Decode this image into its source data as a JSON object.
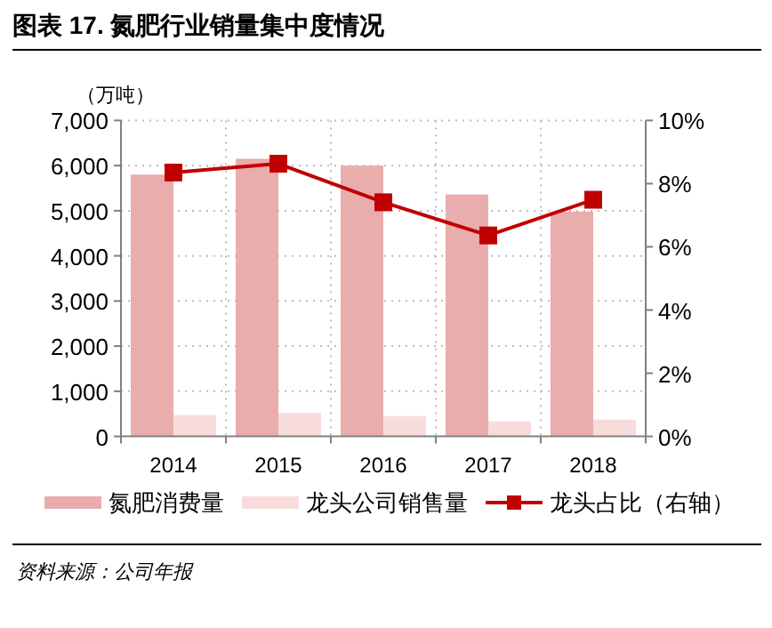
{
  "chart_data": {
    "type": "bar",
    "title": "图表 17. 氮肥行业销量集中度情况",
    "ylabel": "（万吨）",
    "categories": [
      "2014",
      "2015",
      "2016",
      "2017",
      "2018"
    ],
    "series": [
      {
        "name": "氮肥消费量",
        "color": "#e8adac",
        "values": [
          5800,
          6150,
          6000,
          5360,
          4980
        ]
      },
      {
        "name": "龙头公司销售量",
        "color": "#f8dcdc",
        "values": [
          470,
          520,
          450,
          330,
          370
        ]
      },
      {
        "name": "龙头占比（右轴）",
        "type": "line",
        "axis": "y2",
        "color": "#c00000",
        "marker": "square",
        "values": [
          8.35,
          8.63,
          7.41,
          6.36,
          7.49
        ]
      }
    ],
    "ylim": [
      0,
      7000
    ],
    "yticks": [
      0,
      {
        "value": 1000,
        "label": "1,000"
      },
      {
        "value": 2000,
        "label": "2,000"
      },
      {
        "value": 3000,
        "label": "3,000"
      },
      {
        "value": 4000,
        "label": "4,000"
      },
      {
        "value": 5000,
        "label": "5,000"
      },
      {
        "value": 6000,
        "label": "6,000"
      },
      {
        "value": 7000,
        "label": "7,000"
      }
    ],
    "y2lim": [
      0,
      10
    ],
    "y2ticks": [
      {
        "value": 0,
        "label": "0%"
      },
      {
        "value": 2,
        "label": "2%"
      },
      {
        "value": 4,
        "label": "4%"
      },
      {
        "value": 6,
        "label": "6%"
      },
      {
        "value": 8,
        "label": "8%"
      },
      {
        "value": 10,
        "label": "10%"
      }
    ],
    "grid": true,
    "legend": "bottom",
    "annotations": [
      "资料来源：公司年报"
    ]
  }
}
